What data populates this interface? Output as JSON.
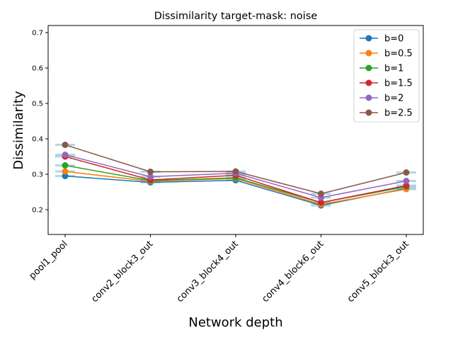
{
  "chart_data": {
    "type": "line",
    "title": "Dissimilarity target-mask: noise",
    "xlabel": "Network depth",
    "ylabel": "Dissimilarity",
    "categories": [
      "pool1_pool",
      "conv2_block3_out",
      "conv3_block4_out",
      "conv4_block6_out",
      "conv5_block3_out"
    ],
    "ylim": [
      0.13,
      0.72
    ],
    "yticks": [
      "0.2",
      "0.3",
      "0.4",
      "0.5",
      "0.6",
      "0.7"
    ],
    "grid": false,
    "legend_position": "top-right",
    "series": [
      {
        "name": "b=0",
        "color": "#1f77b4",
        "values": [
          0.295,
          0.277,
          0.283,
          0.212,
          0.26
        ]
      },
      {
        "name": "b=0.5",
        "color": "#ff7f0e",
        "values": [
          0.308,
          0.28,
          0.288,
          0.215,
          0.258
        ]
      },
      {
        "name": "b=1",
        "color": "#2ca02c",
        "values": [
          0.325,
          0.282,
          0.29,
          0.22,
          0.265
        ]
      },
      {
        "name": "b=1.5",
        "color": "#d62728",
        "values": [
          0.35,
          0.284,
          0.297,
          0.22,
          0.268
        ]
      },
      {
        "name": "b=2",
        "color": "#9467bd",
        "values": [
          0.355,
          0.293,
          0.303,
          0.234,
          0.281
        ]
      },
      {
        "name": "b=2.5",
        "color": "#8c564b",
        "values": [
          0.383,
          0.307,
          0.308,
          0.245,
          0.305
        ]
      }
    ]
  }
}
